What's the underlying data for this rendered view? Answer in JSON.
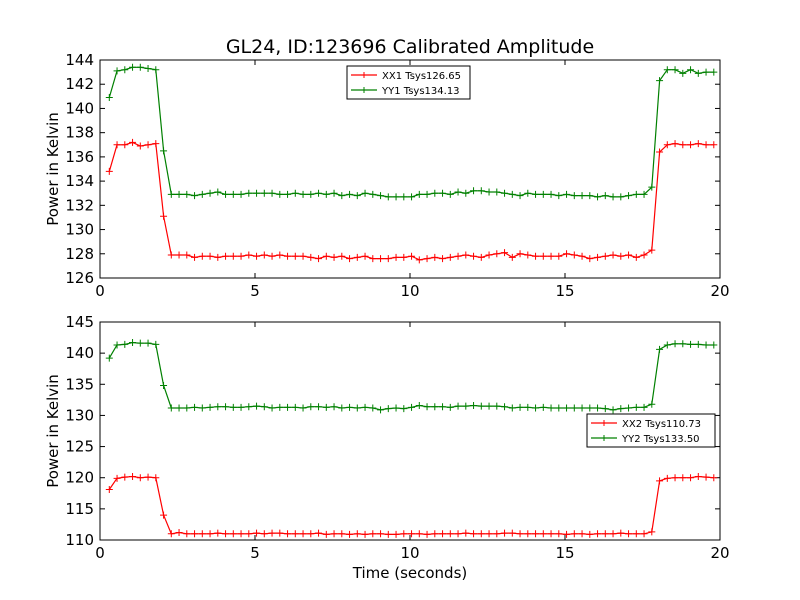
{
  "figure": {
    "title": "GL24, ID:123696 Calibrated Amplitude",
    "xlabel": "Time (seconds)"
  },
  "colors": {
    "red": "#ff0000",
    "green": "#008000"
  },
  "chart_data": [
    {
      "type": "line",
      "ylabel": "Power in Kelvin",
      "xlim": [
        0,
        20
      ],
      "ylim": [
        126,
        144
      ],
      "xticks": [
        0,
        5,
        10,
        15,
        20
      ],
      "yticks": [
        126,
        128,
        130,
        132,
        134,
        136,
        138,
        140,
        142,
        144
      ],
      "legend": {
        "position": "top-center"
      },
      "x": [
        0.3,
        0.55,
        0.8,
        1.05,
        1.3,
        1.55,
        1.8,
        2.05,
        2.3,
        2.55,
        2.8,
        3.05,
        3.3,
        3.55,
        3.8,
        4.05,
        4.3,
        4.55,
        4.8,
        5.05,
        5.3,
        5.55,
        5.8,
        6.05,
        6.3,
        6.55,
        6.8,
        7.05,
        7.3,
        7.55,
        7.8,
        8.05,
        8.3,
        8.55,
        8.8,
        9.05,
        9.3,
        9.55,
        9.8,
        10.05,
        10.3,
        10.55,
        10.8,
        11.05,
        11.3,
        11.55,
        11.8,
        12.05,
        12.3,
        12.55,
        12.8,
        13.05,
        13.3,
        13.55,
        13.8,
        14.05,
        14.3,
        14.55,
        14.8,
        15.05,
        15.3,
        15.55,
        15.8,
        16.05,
        16.3,
        16.55,
        16.8,
        17.05,
        17.3,
        17.55,
        17.8,
        18.05,
        18.3,
        18.55,
        18.8,
        19.05,
        19.3,
        19.55,
        19.8
      ],
      "series": [
        {
          "name": "XX1 Tsys126.65",
          "color": "#ff0000",
          "values": [
            134.8,
            137.0,
            137.0,
            137.2,
            136.9,
            137.0,
            137.1,
            131.1,
            127.9,
            127.9,
            127.9,
            127.7,
            127.8,
            127.8,
            127.7,
            127.8,
            127.8,
            127.8,
            127.9,
            127.8,
            127.9,
            127.8,
            127.9,
            127.8,
            127.8,
            127.8,
            127.7,
            127.6,
            127.8,
            127.7,
            127.8,
            127.6,
            127.7,
            127.8,
            127.6,
            127.6,
            127.6,
            127.7,
            127.7,
            127.8,
            127.5,
            127.6,
            127.7,
            127.6,
            127.7,
            127.8,
            127.9,
            127.8,
            127.7,
            127.9,
            128.0,
            128.1,
            127.7,
            128.0,
            127.9,
            127.8,
            127.8,
            127.8,
            127.8,
            128.0,
            127.9,
            127.8,
            127.6,
            127.7,
            127.8,
            127.9,
            127.8,
            127.9,
            127.7,
            127.9,
            128.3,
            136.4,
            137.0,
            137.1,
            137.0,
            137.0,
            137.1,
            137.0,
            137.0
          ]
        },
        {
          "name": "YY1 Tsys134.13",
          "color": "#008000",
          "values": [
            140.9,
            143.1,
            143.2,
            143.4,
            143.4,
            143.3,
            143.2,
            136.5,
            132.9,
            132.9,
            132.9,
            132.8,
            132.9,
            133.0,
            133.1,
            132.9,
            132.9,
            132.9,
            133.0,
            133.0,
            133.0,
            133.0,
            132.9,
            132.9,
            133.0,
            132.9,
            132.9,
            133.0,
            132.9,
            133.0,
            132.8,
            132.9,
            132.8,
            133.0,
            132.9,
            132.8,
            132.7,
            132.7,
            132.7,
            132.7,
            132.9,
            132.9,
            133.0,
            133.0,
            132.9,
            133.1,
            133.0,
            133.2,
            133.2,
            133.1,
            133.1,
            133.0,
            132.9,
            132.8,
            133.0,
            132.9,
            132.9,
            132.9,
            132.8,
            132.9,
            132.8,
            132.8,
            132.8,
            132.7,
            132.8,
            132.7,
            132.7,
            132.8,
            132.9,
            132.9,
            133.5,
            142.3,
            143.2,
            143.2,
            142.9,
            143.2,
            142.9,
            143.0,
            143.0
          ]
        }
      ]
    },
    {
      "type": "line",
      "ylabel": "Power in Kelvin",
      "xlim": [
        0,
        20
      ],
      "ylim": [
        110,
        145
      ],
      "xticks": [
        0,
        5,
        10,
        15,
        20
      ],
      "yticks": [
        110,
        115,
        120,
        125,
        130,
        135,
        140,
        145
      ],
      "legend": {
        "position": "right"
      },
      "x": [
        0.3,
        0.55,
        0.8,
        1.05,
        1.3,
        1.55,
        1.8,
        2.05,
        2.3,
        2.55,
        2.8,
        3.05,
        3.3,
        3.55,
        3.8,
        4.05,
        4.3,
        4.55,
        4.8,
        5.05,
        5.3,
        5.55,
        5.8,
        6.05,
        6.3,
        6.55,
        6.8,
        7.05,
        7.3,
        7.55,
        7.8,
        8.05,
        8.3,
        8.55,
        8.8,
        9.05,
        9.3,
        9.55,
        9.8,
        10.05,
        10.3,
        10.55,
        10.8,
        11.05,
        11.3,
        11.55,
        11.8,
        12.05,
        12.3,
        12.55,
        12.8,
        13.05,
        13.3,
        13.55,
        13.8,
        14.05,
        14.3,
        14.55,
        14.8,
        15.05,
        15.3,
        15.55,
        15.8,
        16.05,
        16.3,
        16.55,
        16.8,
        17.05,
        17.3,
        17.55,
        17.8,
        18.05,
        18.3,
        18.55,
        18.8,
        19.05,
        19.3,
        19.55,
        19.8
      ],
      "series": [
        {
          "name": "XX2 Tsys110.73",
          "color": "#ff0000",
          "values": [
            118.1,
            119.9,
            120.1,
            120.2,
            120.0,
            120.1,
            120.0,
            114.0,
            111.0,
            111.2,
            111.0,
            111.0,
            111.0,
            111.0,
            111.1,
            111.0,
            111.0,
            111.0,
            111.0,
            111.1,
            111.0,
            111.1,
            111.1,
            111.0,
            111.0,
            111.0,
            111.0,
            111.1,
            110.9,
            111.0,
            111.0,
            110.9,
            111.0,
            110.9,
            111.0,
            111.0,
            110.9,
            110.9,
            111.0,
            111.0,
            111.0,
            110.9,
            111.0,
            111.0,
            111.0,
            111.0,
            111.1,
            111.0,
            111.0,
            111.0,
            111.0,
            111.1,
            111.1,
            111.0,
            111.0,
            111.0,
            111.0,
            111.0,
            111.0,
            110.9,
            111.0,
            111.0,
            110.9,
            111.0,
            111.0,
            111.0,
            111.1,
            111.0,
            111.0,
            111.0,
            111.3,
            119.5,
            119.9,
            120.0,
            120.0,
            120.0,
            120.2,
            120.1,
            120.0
          ]
        },
        {
          "name": "YY2 Tsys133.50",
          "color": "#008000",
          "values": [
            139.2,
            141.3,
            141.4,
            141.7,
            141.6,
            141.6,
            141.4,
            134.8,
            131.2,
            131.2,
            131.2,
            131.3,
            131.2,
            131.3,
            131.4,
            131.4,
            131.3,
            131.3,
            131.4,
            131.5,
            131.4,
            131.2,
            131.3,
            131.3,
            131.3,
            131.2,
            131.4,
            131.4,
            131.3,
            131.4,
            131.2,
            131.3,
            131.2,
            131.3,
            131.2,
            130.9,
            131.1,
            131.2,
            131.1,
            131.3,
            131.6,
            131.4,
            131.4,
            131.4,
            131.3,
            131.5,
            131.5,
            131.6,
            131.5,
            131.5,
            131.5,
            131.4,
            131.2,
            131.3,
            131.3,
            131.2,
            131.3,
            131.2,
            131.2,
            131.2,
            131.2,
            131.2,
            131.2,
            131.2,
            131.1,
            130.9,
            131.1,
            131.2,
            131.3,
            131.3,
            131.8,
            140.6,
            141.3,
            141.5,
            141.5,
            141.4,
            141.4,
            141.3,
            141.3
          ]
        }
      ]
    }
  ]
}
